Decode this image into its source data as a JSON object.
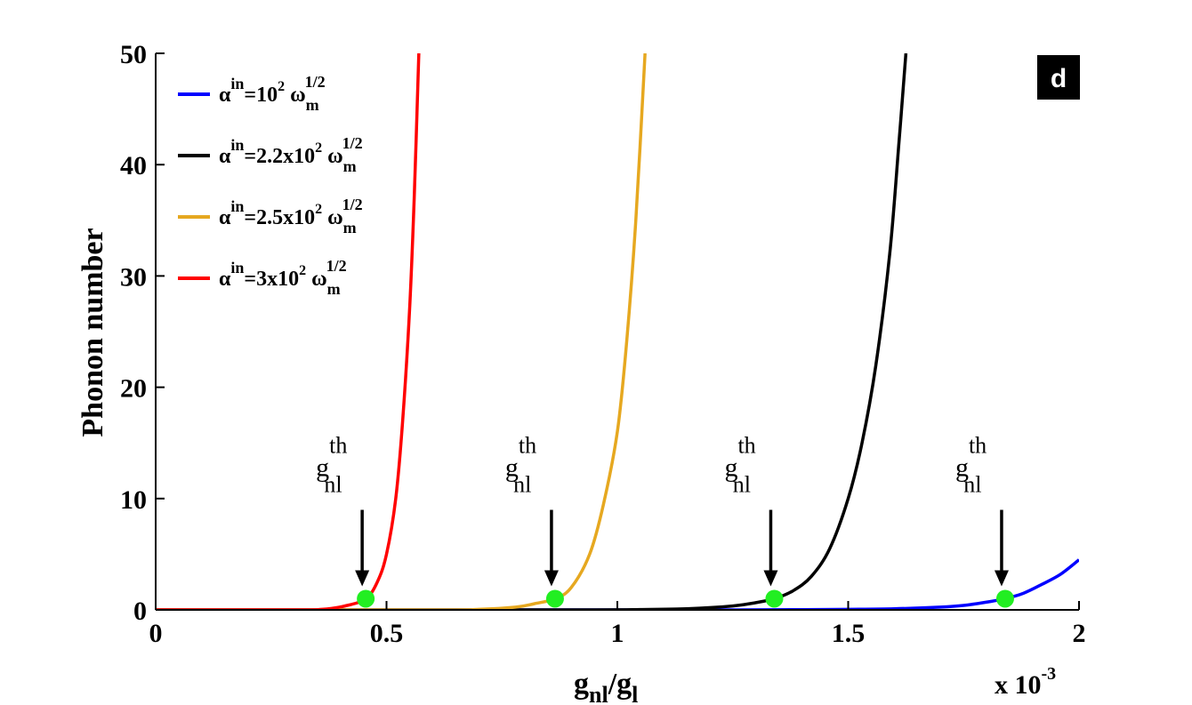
{
  "chart_data": {
    "type": "line",
    "panel_label": "d",
    "xlabel": {
      "main": "g",
      "sub1": "nl",
      "slash": "/g",
      "sub2": "l"
    },
    "ylabel": "Phonon number",
    "x_multiplier": {
      "text": "x 10",
      "exponent": "-3"
    },
    "xlim": [
      0,
      2
    ],
    "ylim": [
      0,
      50
    ],
    "xticks": [
      0,
      0.5,
      1,
      1.5,
      2
    ],
    "xtick_labels": [
      "0",
      "0.5",
      "1",
      "1.5",
      "2"
    ],
    "yticks": [
      0,
      10,
      20,
      30,
      40,
      50
    ],
    "ytick_labels": [
      "0",
      "10",
      "20",
      "30",
      "40",
      "50"
    ],
    "grid": false,
    "legend_position": "top-left",
    "series": [
      {
        "name": {
          "a": "α",
          "a_sup": "in",
          "mid": "=10",
          "p_sup": "2",
          "w": " ω",
          "w_sub": "m",
          "w_sup": "1/2"
        },
        "color": "#0000ff",
        "threshold_x": 1.84,
        "x": [
          0.0,
          1.0,
          1.2,
          1.4,
          1.5,
          1.6,
          1.7,
          1.75,
          1.8,
          1.84,
          1.88,
          1.92,
          1.96,
          2.0
        ],
        "y": [
          0.0,
          0.0,
          0.0,
          0.02,
          0.05,
          0.1,
          0.25,
          0.4,
          0.7,
          1.0,
          1.5,
          2.3,
          3.2,
          4.5
        ]
      },
      {
        "name": {
          "a": "α",
          "a_sup": "in",
          "mid": "=2.2x10",
          "p_sup": "2",
          "w": " ω",
          "w_sub": "m",
          "w_sup": "1/2"
        },
        "color": "#000000",
        "threshold_x": 1.34,
        "x": [
          0.0,
          0.9,
          1.05,
          1.15,
          1.25,
          1.3,
          1.34,
          1.38,
          1.42,
          1.46,
          1.5,
          1.53,
          1.56,
          1.59,
          1.61,
          1.625
        ],
        "y": [
          0.0,
          0.0,
          0.03,
          0.1,
          0.35,
          0.65,
          1.0,
          1.7,
          3.0,
          5.5,
          10.0,
          15.0,
          22.0,
          32.0,
          42.0,
          50.0
        ]
      },
      {
        "name": {
          "a": "α",
          "a_sup": "in",
          "mid": "=2.5x10",
          "p_sup": "2",
          "w": " ω",
          "w_sub": "m",
          "w_sup": "1/2"
        },
        "color": "#e6a820",
        "threshold_x": 0.865,
        "x": [
          0.0,
          0.6,
          0.7,
          0.78,
          0.82,
          0.865,
          0.9,
          0.94,
          0.97,
          1.0,
          1.02,
          1.04,
          1.06
        ],
        "y": [
          0.0,
          0.0,
          0.05,
          0.25,
          0.55,
          1.0,
          2.0,
          5.0,
          9.5,
          16.0,
          24.0,
          35.0,
          50.0
        ]
      },
      {
        "name": {
          "a": "α",
          "a_sup": "in",
          "mid": "=3x10",
          "p_sup": "2",
          "w": " ω",
          "w_sub": "m",
          "w_sup": "1/2"
        },
        "color": "#ff0000",
        "threshold_x": 0.455,
        "x": [
          0.0,
          0.3,
          0.36,
          0.41,
          0.455,
          0.48,
          0.5,
          0.52,
          0.535,
          0.55,
          0.56,
          0.57
        ],
        "y": [
          0.0,
          0.0,
          0.05,
          0.35,
          1.0,
          2.5,
          5.0,
          10.0,
          17.0,
          27.0,
          37.0,
          50.0
        ]
      }
    ],
    "annotations": [
      {
        "text": "g",
        "sub": "nl",
        "sup": "th",
        "x": 0.455,
        "y": 1.0
      },
      {
        "text": "g",
        "sub": "nl",
        "sup": "th",
        "x": 0.865,
        "y": 1.0
      },
      {
        "text": "g",
        "sub": "nl",
        "sup": "th",
        "x": 1.34,
        "y": 1.0
      },
      {
        "text": "g",
        "sub": "nl",
        "sup": "th",
        "x": 1.84,
        "y": 1.0
      }
    ],
    "marker_color": "#22ee22"
  }
}
